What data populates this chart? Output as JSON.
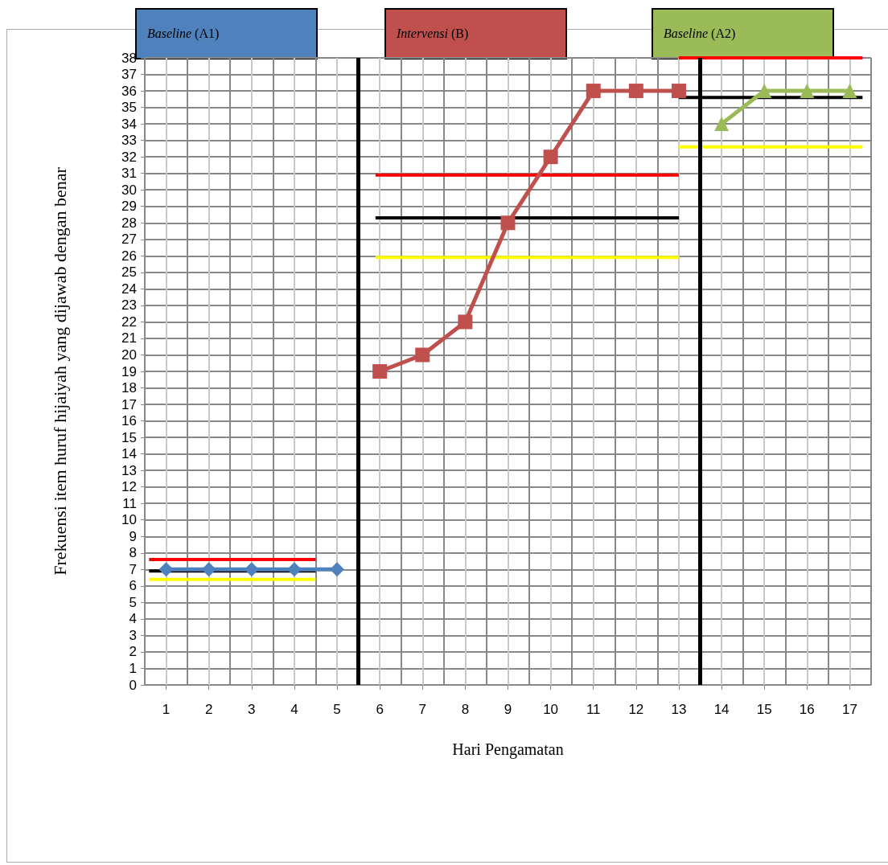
{
  "chart_data": {
    "type": "line",
    "xlabel": "Hari Pengamatan",
    "ylabel": "Frekuensi item huruf hijaiyah yang dijawab dengan benar",
    "annotations": [
      "Baseline (A1)",
      "Intervensi (B)",
      "Baseline (A2)"
    ],
    "xlim": [
      0.5,
      17.5
    ],
    "xticks": [
      1,
      2,
      3,
      4,
      5,
      6,
      7,
      8,
      9,
      10,
      11,
      12,
      13,
      14,
      15,
      16,
      17
    ],
    "ylim": [
      0,
      38
    ],
    "yticks": [
      0,
      1,
      2,
      3,
      4,
      5,
      6,
      7,
      8,
      9,
      10,
      11,
      12,
      13,
      14,
      15,
      16,
      17,
      18,
      19,
      20,
      21,
      22,
      23,
      24,
      25,
      26,
      27,
      28,
      29,
      30,
      31,
      32,
      33,
      34,
      35,
      36,
      37,
      38
    ],
    "grid": true,
    "line_style": "solid",
    "series": [
      {
        "color": "#4f81bd",
        "marker": "diamond",
        "x": [
          1,
          2,
          3,
          4,
          5
        ],
        "values": [
          7,
          7,
          7,
          7,
          7
        ]
      },
      {
        "color": "#c0504d",
        "marker": "square",
        "x": [
          6,
          7,
          8,
          9,
          10,
          11,
          12,
          13
        ],
        "values": [
          19,
          20,
          22,
          28,
          32,
          36,
          36,
          36
        ]
      },
      {
        "color": "#9bbb59",
        "marker": "triangle",
        "x": [
          14,
          15,
          16,
          17
        ],
        "values": [
          34,
          36,
          36,
          36
        ]
      },
      {
        "color": "#ff0000",
        "marker": "none",
        "x": [
          0.6,
          4.5
        ],
        "values": [
          7.6,
          7.6
        ]
      },
      {
        "color": "#000000",
        "marker": "none",
        "x": [
          0.6,
          4.5
        ],
        "values": [
          6.9,
          6.9
        ]
      },
      {
        "color": "#ffff00",
        "marker": "none",
        "x": [
          0.6,
          4.5
        ],
        "values": [
          6.4,
          6.4
        ]
      },
      {
        "color": "#ff0000",
        "marker": "none",
        "x": [
          5.9,
          13
        ],
        "values": [
          30.9,
          30.9
        ]
      },
      {
        "color": "#000000",
        "marker": "none",
        "x": [
          5.9,
          13
        ],
        "values": [
          28.3,
          28.3
        ]
      },
      {
        "color": "#ffff00",
        "marker": "none",
        "x": [
          5.9,
          13
        ],
        "values": [
          25.9,
          25.9
        ]
      },
      {
        "color": "#ff0000",
        "marker": "none",
        "x": [
          13,
          17.3
        ],
        "values": [
          38,
          38
        ]
      },
      {
        "color": "#000000",
        "marker": "none",
        "x": [
          13,
          17.3
        ],
        "values": [
          35.6,
          35.6
        ]
      },
      {
        "color": "#ffff00",
        "marker": "none",
        "x": [
          13,
          17.3
        ],
        "values": [
          32.6,
          32.6
        ]
      }
    ],
    "ref_lines": [
      {
        "axis": "x",
        "value": 5.5,
        "color": "#000000"
      },
      {
        "axis": "x",
        "value": 13.5,
        "color": "#000000"
      }
    ]
  }
}
